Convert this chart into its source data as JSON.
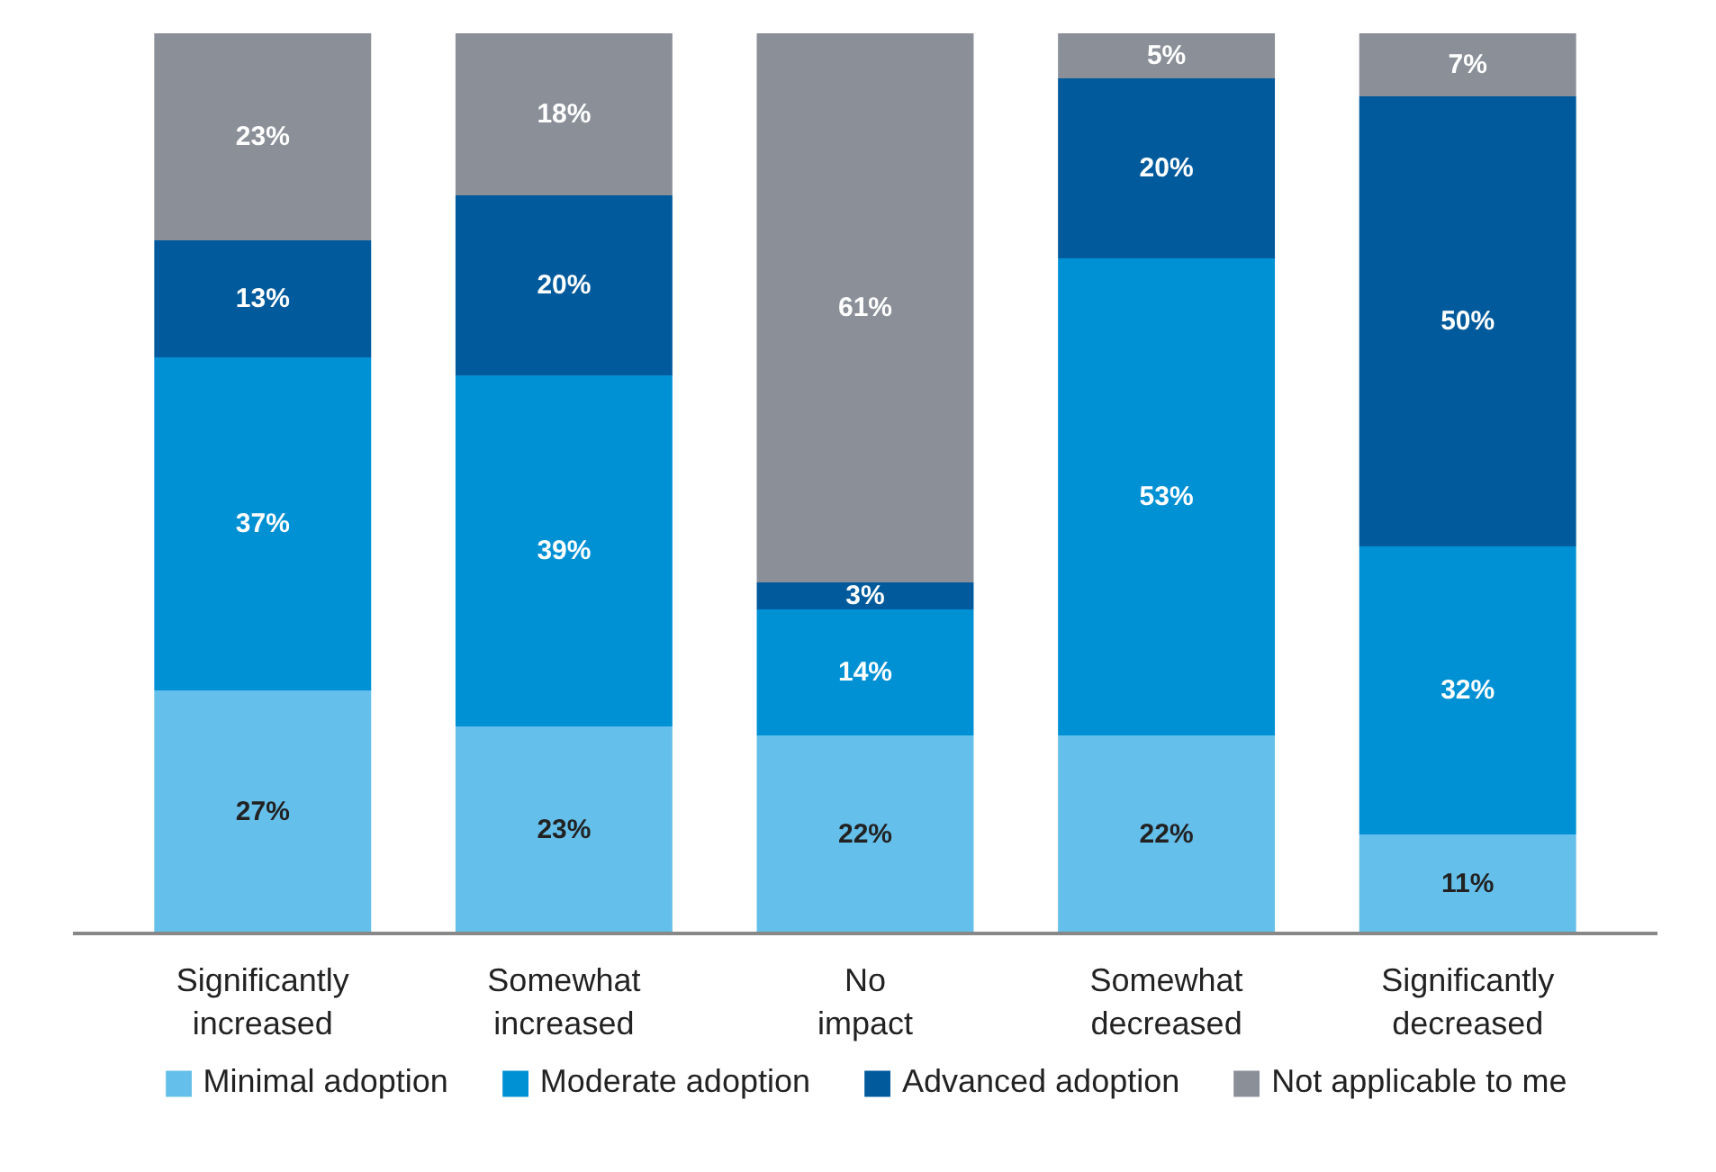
{
  "chart_data": {
    "type": "bar",
    "stacked": true,
    "legend": "bottom",
    "grid": false,
    "categories": [
      "Significantly increased",
      "Somewhat increased",
      "No impact",
      "Somewhat decreased",
      "Significantly decreased"
    ],
    "series": [
      {
        "name": "Minimal adoption",
        "color": "#65bfeb",
        "values": [
          27,
          23,
          22,
          22,
          11
        ],
        "value_labels": [
          "27%",
          "23%",
          "22%",
          "22%",
          "11%"
        ]
      },
      {
        "name": "Moderate adoption",
        "color": "#0091d5",
        "values": [
          37,
          39,
          14,
          53,
          32
        ],
        "value_labels": [
          "37%",
          "39%",
          "14%",
          "53%",
          "32%"
        ]
      },
      {
        "name": "Advanced adoption",
        "color": "#005a9c",
        "values": [
          13,
          20,
          3,
          20,
          50
        ],
        "value_labels": [
          "13%",
          "20%",
          "3%",
          "20%",
          "50%"
        ]
      },
      {
        "name": "Not applicable to me",
        "color": "#8a8f98",
        "values": [
          23,
          18,
          61,
          5,
          7
        ],
        "value_labels": [
          "23%",
          "18%",
          "61%",
          "5%",
          "7%"
        ]
      }
    ]
  }
}
